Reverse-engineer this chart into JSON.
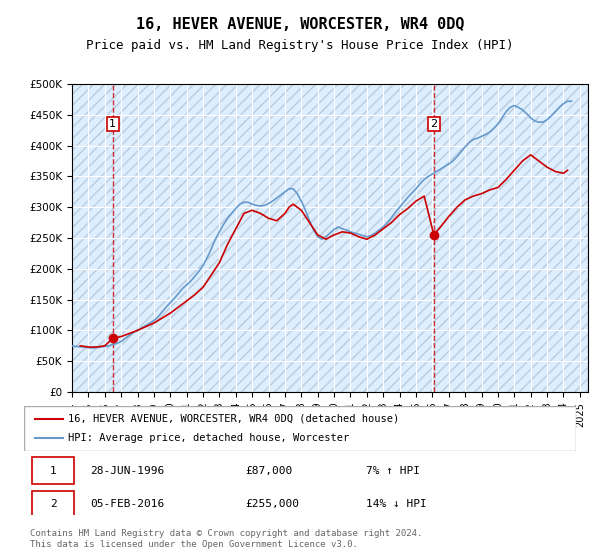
{
  "title": "16, HEVER AVENUE, WORCESTER, WR4 0DQ",
  "subtitle": "Price paid vs. HM Land Registry's House Price Index (HPI)",
  "ylabel_prefix": "£",
  "yticks": [
    0,
    50000,
    100000,
    150000,
    200000,
    250000,
    300000,
    350000,
    400000,
    450000,
    500000
  ],
  "ytick_labels": [
    "£0",
    "£50K",
    "£100K",
    "£150K",
    "£200K",
    "£250K",
    "£300K",
    "£350K",
    "£400K",
    "£450K",
    "£500K"
  ],
  "xlim_start": 1994.0,
  "xlim_end": 2025.5,
  "ylim_min": 0,
  "ylim_max": 500000,
  "hpi_color": "#6699cc",
  "price_color": "#cc0000",
  "dashed_color": "#cc0000",
  "background_color": "#ddeeff",
  "hatch_color": "#bbccdd",
  "marker1_date": 1996.49,
  "marker1_value": 87000,
  "marker2_date": 2016.09,
  "marker2_value": 255000,
  "annotation1_label": "1",
  "annotation2_label": "2",
  "legend_line1": "16, HEVER AVENUE, WORCESTER, WR4 0DQ (detached house)",
  "legend_line2": "HPI: Average price, detached house, Worcester",
  "table_row1": [
    "1",
    "28-JUN-1996",
    "£87,000",
    "7% ↑ HPI"
  ],
  "table_row2": [
    "2",
    "05-FEB-2016",
    "£255,000",
    "14% ↓ HPI"
  ],
  "footnote": "Contains HM Land Registry data © Crown copyright and database right 2024.\nThis data is licensed under the Open Government Licence v3.0.",
  "hpi_data": {
    "years": [
      1994.0,
      1994.25,
      1994.5,
      1994.75,
      1995.0,
      1995.25,
      1995.5,
      1995.75,
      1996.0,
      1996.25,
      1996.5,
      1996.75,
      1997.0,
      1997.25,
      1997.5,
      1997.75,
      1998.0,
      1998.25,
      1998.5,
      1998.75,
      1999.0,
      1999.25,
      1999.5,
      1999.75,
      2000.0,
      2000.25,
      2000.5,
      2000.75,
      2001.0,
      2001.25,
      2001.5,
      2001.75,
      2002.0,
      2002.25,
      2002.5,
      2002.75,
      2003.0,
      2003.25,
      2003.5,
      2003.75,
      2004.0,
      2004.25,
      2004.5,
      2004.75,
      2005.0,
      2005.25,
      2005.5,
      2005.75,
      2006.0,
      2006.25,
      2006.5,
      2006.75,
      2007.0,
      2007.25,
      2007.5,
      2007.75,
      2008.0,
      2008.25,
      2008.5,
      2008.75,
      2009.0,
      2009.25,
      2009.5,
      2009.75,
      2010.0,
      2010.25,
      2010.5,
      2010.75,
      2011.0,
      2011.25,
      2011.5,
      2011.75,
      2012.0,
      2012.25,
      2012.5,
      2012.75,
      2013.0,
      2013.25,
      2013.5,
      2013.75,
      2014.0,
      2014.25,
      2014.5,
      2014.75,
      2015.0,
      2015.25,
      2015.5,
      2015.75,
      2016.0,
      2016.25,
      2016.5,
      2016.75,
      2017.0,
      2017.25,
      2017.5,
      2017.75,
      2018.0,
      2018.25,
      2018.5,
      2018.75,
      2019.0,
      2019.25,
      2019.5,
      2019.75,
      2020.0,
      2020.25,
      2020.5,
      2020.75,
      2021.0,
      2021.25,
      2021.5,
      2021.75,
      2022.0,
      2022.25,
      2022.5,
      2022.75,
      2023.0,
      2023.25,
      2023.5,
      2023.75,
      2024.0,
      2024.25,
      2024.5
    ],
    "values": [
      75000,
      74000,
      73500,
      73000,
      72000,
      71500,
      72000,
      73000,
      74000,
      75000,
      77000,
      79000,
      82000,
      87000,
      92000,
      97000,
      100000,
      104000,
      108000,
      112000,
      116000,
      122000,
      130000,
      138000,
      145000,
      152000,
      160000,
      168000,
      174000,
      180000,
      188000,
      196000,
      205000,
      218000,
      232000,
      248000,
      260000,
      272000,
      282000,
      290000,
      298000,
      305000,
      308000,
      308000,
      305000,
      303000,
      302000,
      303000,
      306000,
      310000,
      315000,
      320000,
      325000,
      330000,
      330000,
      322000,
      310000,
      295000,
      278000,
      263000,
      252000,
      248000,
      252000,
      258000,
      264000,
      268000,
      265000,
      263000,
      260000,
      258000,
      256000,
      254000,
      252000,
      254000,
      258000,
      263000,
      268000,
      275000,
      283000,
      292000,
      300000,
      308000,
      316000,
      323000,
      330000,
      338000,
      345000,
      350000,
      354000,
      358000,
      362000,
      366000,
      370000,
      375000,
      382000,
      390000,
      398000,
      405000,
      410000,
      412000,
      415000,
      418000,
      422000,
      428000,
      435000,
      445000,
      455000,
      462000,
      465000,
      462000,
      458000,
      452000,
      445000,
      440000,
      438000,
      438000,
      442000,
      448000,
      455000,
      462000,
      468000,
      472000,
      472000
    ]
  },
  "price_data": {
    "years": [
      1994.5,
      1995.0,
      1995.5,
      1996.0,
      1996.49,
      1997.0,
      1997.5,
      1998.0,
      1998.5,
      1999.0,
      1999.5,
      2000.0,
      2000.5,
      2001.0,
      2001.5,
      2002.0,
      2002.5,
      2003.0,
      2003.5,
      2004.0,
      2004.5,
      2005.0,
      2005.5,
      2006.0,
      2006.5,
      2007.0,
      2007.25,
      2007.5,
      2008.0,
      2008.5,
      2009.0,
      2009.5,
      2010.0,
      2010.5,
      2011.0,
      2011.5,
      2012.0,
      2012.5,
      2013.0,
      2013.5,
      2014.0,
      2014.5,
      2015.0,
      2015.5,
      2016.09,
      2016.5,
      2017.0,
      2017.5,
      2018.0,
      2018.5,
      2019.0,
      2019.5,
      2020.0,
      2020.5,
      2021.0,
      2021.5,
      2022.0,
      2022.5,
      2023.0,
      2023.5,
      2024.0,
      2024.25
    ],
    "values": [
      75000,
      73000,
      73000,
      75000,
      87000,
      90000,
      95000,
      100000,
      106000,
      112000,
      120000,
      128000,
      138000,
      148000,
      158000,
      170000,
      190000,
      210000,
      240000,
      265000,
      290000,
      295000,
      290000,
      282000,
      278000,
      290000,
      300000,
      305000,
      295000,
      275000,
      255000,
      248000,
      255000,
      260000,
      258000,
      252000,
      248000,
      255000,
      265000,
      275000,
      288000,
      298000,
      310000,
      318000,
      255000,
      268000,
      285000,
      300000,
      312000,
      318000,
      322000,
      328000,
      332000,
      345000,
      360000,
      375000,
      385000,
      375000,
      365000,
      358000,
      355000,
      360000
    ]
  }
}
